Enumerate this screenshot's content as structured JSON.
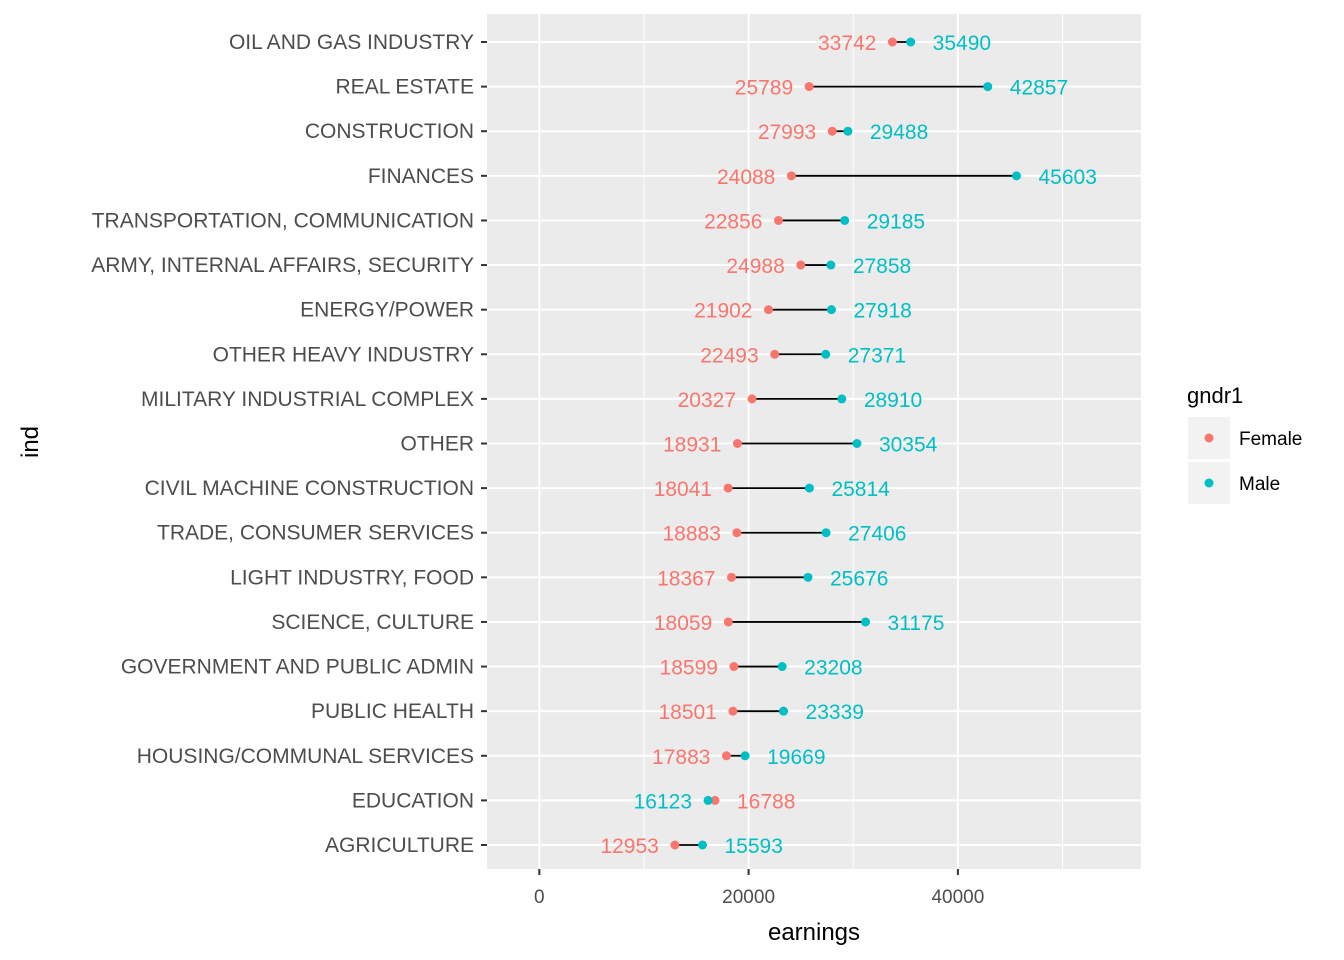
{
  "chart_data": {
    "type": "dumbbell",
    "xlabel": "earnings",
    "ylabel": "ind",
    "xlim": [
      -5000,
      57500
    ],
    "xticks": [
      0,
      20000,
      40000
    ],
    "xtick_labels": [
      "0",
      "20000",
      "40000"
    ],
    "grid": true,
    "legend": {
      "title": "gndr1",
      "placement": "right",
      "items": [
        {
          "name": "Female",
          "color": "#F8766D"
        },
        {
          "name": "Male",
          "color": "#00BFC4"
        }
      ]
    },
    "categories": [
      "OIL AND GAS INDUSTRY",
      "REAL ESTATE",
      "CONSTRUCTION",
      "FINANCES",
      "TRANSPORTATION, COMMUNICATION",
      "ARMY, INTERNAL AFFAIRS, SECURITY",
      "ENERGY/POWER",
      "OTHER HEAVY INDUSTRY",
      "MILITARY INDUSTRIAL COMPLEX",
      "OTHER",
      "CIVIL MACHINE CONSTRUCTION",
      "TRADE, CONSUMER SERVICES",
      "LIGHT INDUSTRY, FOOD",
      "SCIENCE, CULTURE",
      "GOVERNMENT AND PUBLIC ADMIN",
      "PUBLIC HEALTH",
      "HOUSING/COMMUNAL SERVICES",
      "EDUCATION",
      "AGRICULTURE"
    ],
    "series": [
      {
        "name": "Female",
        "color": "#F8766D",
        "values": [
          33742,
          25789,
          27993,
          24088,
          22856,
          24988,
          21902,
          22493,
          20327,
          18931,
          18041,
          18883,
          18367,
          18059,
          18599,
          18501,
          17883,
          16788,
          12953
        ]
      },
      {
        "name": "Male",
        "color": "#00BFC4",
        "values": [
          35490,
          42857,
          29488,
          45603,
          29185,
          27858,
          27918,
          27371,
          28910,
          30354,
          25814,
          27406,
          25676,
          31175,
          23208,
          23339,
          19669,
          16123,
          15593
        ]
      }
    ]
  }
}
